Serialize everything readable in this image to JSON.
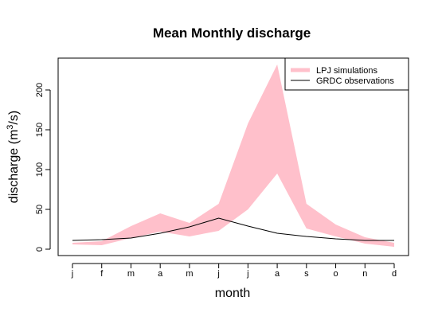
{
  "chart_data": {
    "type": "area",
    "title": "Mean Monthly discharge",
    "xlabel": "month",
    "ylabel": "discharge (m3/s)",
    "ylabel_parts": {
      "prefix": "discharge (m",
      "superscript": "3",
      "suffix": "/s)"
    },
    "categories": [
      "j",
      "f",
      "m",
      "a",
      "m",
      "j",
      "j",
      "a",
      "s",
      "o",
      "n",
      "d"
    ],
    "ylim": [
      -8,
      240
    ],
    "yticks": [
      0,
      50,
      100,
      150,
      200
    ],
    "series": [
      {
        "name": "LPJ simulations",
        "kind": "band",
        "color": "#ffc0cb",
        "lower": [
          6,
          5,
          14,
          22,
          16,
          23,
          50,
          95,
          26,
          16,
          7,
          3
        ],
        "upper": [
          8,
          10,
          29,
          45,
          33,
          57,
          158,
          232,
          57,
          31,
          15,
          8
        ]
      },
      {
        "name": "GRDC observations",
        "kind": "line",
        "color": "#000000",
        "values": [
          11,
          12,
          14,
          20,
          28,
          39,
          29,
          20,
          16,
          13,
          11,
          11
        ]
      }
    ],
    "legend_position": "top-right",
    "grid": false
  }
}
